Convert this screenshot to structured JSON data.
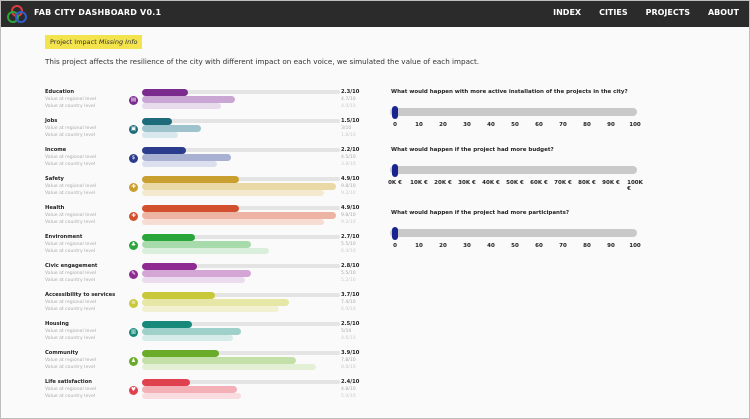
{
  "header": {
    "title": "FAB CITY DASHBOARD V0.1",
    "nav": [
      "INDEX",
      "CITIES",
      "PROJECTS",
      "ABOUT"
    ]
  },
  "badge": {
    "prefix": "Project Impact",
    "emphasis": "Missing Info"
  },
  "intro": "This project affects the resilience of the city with different impact on each voice, we simulated the value of each impact.",
  "sublabels": {
    "regional": "Value at regional level",
    "country": "Value at country level"
  },
  "indicators": [
    {
      "label": "Education",
      "icon": "education-icon",
      "glyph": "▤",
      "color": "#7b2a8e",
      "light": "#c9a6d4",
      "lighter": "#e7dbec",
      "score": "2.3/10",
      "regional": "4.7/10",
      "country": "4.0/10",
      "v": 2.3,
      "r": 4.7,
      "c": 4.0
    },
    {
      "label": "Jobs",
      "icon": "briefcase-icon",
      "glyph": "▣",
      "color": "#1e6b7b",
      "light": "#9ec3cc",
      "lighter": "#d8e8ec",
      "score": "1.5/10",
      "regional": "3/10",
      "country": "1.8/10",
      "v": 1.5,
      "r": 3.0,
      "c": 1.8
    },
    {
      "label": "Income",
      "icon": "dollar-icon",
      "glyph": "$",
      "color": "#2b3c8c",
      "light": "#a9b1d3",
      "lighter": "#dcdfee",
      "score": "2.2/10",
      "regional": "4.5/10",
      "country": "3.8/10",
      "v": 2.2,
      "r": 4.5,
      "c": 3.8
    },
    {
      "label": "Safety",
      "icon": "shield-icon",
      "glyph": "✚",
      "color": "#c9a030",
      "light": "#ead9a6",
      "lighter": "#f2e9cf",
      "score": "4.9/10",
      "regional": "9.8/10",
      "country": "9.2/10",
      "v": 4.9,
      "r": 9.8,
      "c": 9.2
    },
    {
      "label": "Health",
      "icon": "health-cross-icon",
      "glyph": "✚",
      "color": "#d2502e",
      "light": "#eeb4a3",
      "lighter": "#f6dcd3",
      "score": "4.9/10",
      "regional": "9.8/10",
      "country": "9.2/10",
      "v": 4.9,
      "r": 9.8,
      "c": 9.2
    },
    {
      "label": "Environment",
      "icon": "tree-icon",
      "glyph": "♣",
      "color": "#2aa53a",
      "light": "#a8dbac",
      "lighter": "#d9efdb",
      "score": "2.7/10",
      "regional": "5.5/10",
      "country": "6.4/10",
      "v": 2.7,
      "r": 5.5,
      "c": 6.4
    },
    {
      "label": "Civic engagement",
      "icon": "civic-icon",
      "glyph": "✎",
      "color": "#8e2a92",
      "light": "#d3a6d6",
      "lighter": "#ecdbee",
      "score": "2.8/10",
      "regional": "5.5/10",
      "country": "5.2/10",
      "v": 2.8,
      "r": 5.5,
      "c": 5.2
    },
    {
      "label": "Accessibility to services",
      "icon": "wifi-icon",
      "glyph": "≋",
      "color": "#c8c83a",
      "light": "#e6e6a6",
      "lighter": "#f1f1d2",
      "score": "3.7/10",
      "regional": "7.4/10",
      "country": "6.9/10",
      "v": 3.7,
      "r": 7.4,
      "c": 6.9
    },
    {
      "label": "Housing",
      "icon": "house-icon",
      "glyph": "▥",
      "color": "#16897a",
      "light": "#9fd0c9",
      "lighter": "#d6ece8",
      "score": "2.5/10",
      "regional": "5/10",
      "country": "4.6/10",
      "v": 2.5,
      "r": 5.0,
      "c": 4.6
    },
    {
      "label": "Community",
      "icon": "people-icon",
      "glyph": "♟",
      "color": "#6aac2a",
      "light": "#c3e0a8",
      "lighter": "#e3f0d6",
      "score": "3.9/10",
      "regional": "7.8/10",
      "country": "8.8/10",
      "v": 3.9,
      "r": 7.8,
      "c": 8.8
    },
    {
      "label": "Life satisfaction",
      "icon": "heart-icon",
      "glyph": "♥",
      "color": "#e0414e",
      "light": "#f3b1b7",
      "lighter": "#f9dcdf",
      "score": "2.4/10",
      "regional": "4.8/10",
      "country": "5.0/10",
      "v": 2.4,
      "r": 4.8,
      "c": 5.0
    }
  ],
  "simulations": [
    {
      "question": "What would happen with more active installation of the projects in the city?",
      "ticks": [
        "0",
        "10",
        "20",
        "30",
        "40",
        "50",
        "60",
        "70",
        "80",
        "90",
        "100"
      ],
      "value": 0
    },
    {
      "question": "What would happen if the project had more budget?",
      "ticks": [
        "0K €",
        "10K €",
        "20K €",
        "30K €",
        "40K €",
        "50K €",
        "60K €",
        "70K €",
        "80K €",
        "90K €",
        "100K €"
      ],
      "value": 0
    },
    {
      "question": "What would happen if the project had more participants?",
      "ticks": [
        "0",
        "10",
        "20",
        "30",
        "40",
        "50",
        "60",
        "70",
        "80",
        "90",
        "100"
      ],
      "value": 0
    }
  ],
  "colors": {
    "topbar": "#2b2b2b",
    "badge": "#f3e34c",
    "thumb": "#1a2490"
  }
}
